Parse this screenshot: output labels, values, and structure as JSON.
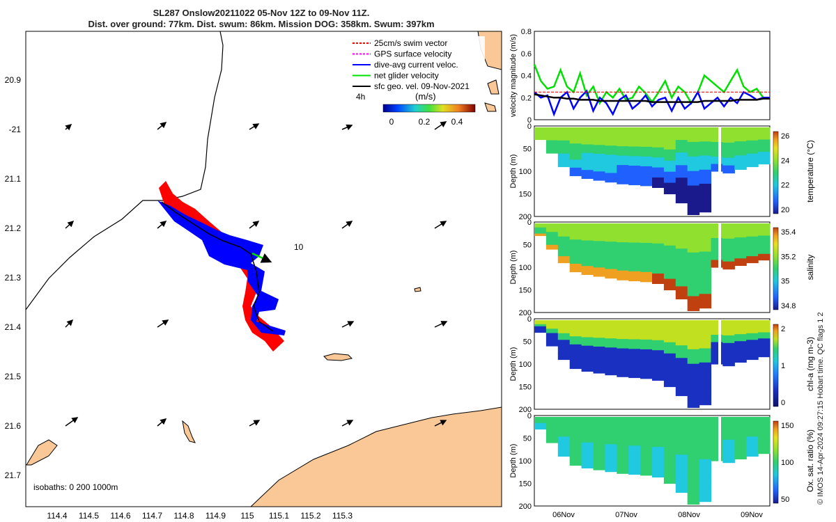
{
  "title": {
    "line1": "SL287 Onslow20211022 05-Nov 12Z to 09-Nov 11Z.",
    "line2": "Dist. over ground: 77km. Dist. swum: 86km. Mission DOG: 358km. Swum: 397km"
  },
  "map": {
    "legend": [
      {
        "label": "25cm/s swim vector",
        "color": "#ff0000"
      },
      {
        "label": "GPS surface velocity",
        "color": "#ff00ff"
      },
      {
        "label": "dive-avg current veloc.",
        "color": "#0000ff"
      },
      {
        "label": "net glider velocity",
        "color": "#00e000"
      },
      {
        "label": "sfc geo. vel. 09-Nov-2021",
        "color": "#000000"
      }
    ],
    "colorbar_time_label": "4h",
    "colorbar_unit": "(m/s)",
    "colorbar_ticks": [
      "0",
      "0.2",
      "0.4"
    ],
    "isobath_note": "isobaths: 0   200   1000m",
    "contour_label": "10",
    "lon_ticks": [
      "114.4",
      "114.5",
      "114.6",
      "114.7",
      "114.8",
      "114.9",
      "115",
      "115.1",
      "115.2",
      "115.3"
    ],
    "lat_ticks": [
      "20.9",
      "-21",
      "21.1",
      "21.2",
      "21.3",
      "21.4",
      "21.5",
      "21.6",
      "21.7"
    ],
    "land_color": "#fac896"
  },
  "chart_data": [
    {
      "type": "line",
      "ylabel": "velocity magnitude (m/s)",
      "ylim": [
        0,
        0.8
      ],
      "yticks": [
        "0",
        "0.2",
        "0.4",
        "0.6",
        "0.8"
      ],
      "x_range": [
        "05-Nov 12Z",
        "09-Nov 11Z"
      ],
      "series": [
        {
          "color": "#00e000",
          "values": [
            0.5,
            0.35,
            0.28,
            0.3,
            0.45,
            0.3,
            0.25,
            0.42,
            0.22,
            0.3,
            0.15,
            0.25,
            0.2,
            0.28,
            0.18,
            0.2,
            0.3,
            0.24,
            0.16,
            0.25,
            0.35,
            0.2,
            0.3,
            0.25,
            0.15,
            0.25,
            0.4,
            0.35,
            0.3,
            0.25,
            0.35,
            0.45,
            0.3,
            0.25,
            0.28,
            0.2,
            0.2
          ]
        },
        {
          "color": "#0000ff",
          "values": [
            0.25,
            0.2,
            0.22,
            0.05,
            0.2,
            0.25,
            0.1,
            0.2,
            0.26,
            0.08,
            0.2,
            0.15,
            0.05,
            0.18,
            0.22,
            0.1,
            0.15,
            0.22,
            0.12,
            0.18,
            0.2,
            0.08,
            0.2,
            0.1,
            0.15,
            0.25,
            0.1,
            0.15,
            0.2,
            0.12,
            0.2,
            0.15,
            0.25,
            0.22,
            0.18,
            0.2,
            0.2
          ]
        },
        {
          "color": "#ff0000",
          "values": [
            0.25,
            0.25,
            0.25,
            0.25,
            0.25,
            0.25,
            0.25,
            0.25,
            0.25,
            0.25,
            0.25,
            0.25,
            0.25,
            0.25,
            0.25,
            0.25,
            0.25,
            0.25,
            0.25,
            0.25,
            0.25,
            0.25,
            0.25,
            0.25,
            0.25,
            0.25,
            0.25,
            0.25,
            0.25,
            0.25,
            0.25,
            0.25,
            0.25,
            0.25,
            0.25,
            0.25,
            0.25
          ]
        },
        {
          "color": "#000000",
          "values": [
            0.23,
            0.22,
            0.21,
            0.2,
            0.2,
            0.19,
            0.19,
            0.18,
            0.18,
            0.18,
            0.17,
            0.17,
            0.17,
            0.17,
            0.17,
            0.17,
            0.17,
            0.17,
            0.16,
            0.16,
            0.16,
            0.16,
            0.16,
            0.16,
            0.16,
            0.16,
            0.17,
            0.17,
            0.17,
            0.17,
            0.17,
            0.18,
            0.18,
            0.18,
            0.18,
            0.19,
            0.19
          ]
        }
      ]
    },
    {
      "type": "heatmap",
      "ylabel": "Depth (m)",
      "yticks": [
        "0",
        "50",
        "100",
        "150",
        "200"
      ],
      "colorbar_label": "temperature (°C)",
      "colorbar_ticks": [
        "20",
        "22",
        "24",
        "26"
      ],
      "colors": [
        "#1a1a8c",
        "#2060ff",
        "#20c8e0",
        "#30d070",
        "#90e030",
        "#e8e020",
        "#f0a020",
        "#c04010"
      ]
    },
    {
      "type": "heatmap",
      "ylabel": "Depth (m)",
      "yticks": [
        "0",
        "50",
        "100",
        "150",
        "200"
      ],
      "colorbar_label": "salinity",
      "colorbar_ticks": [
        "34.8",
        "35",
        "35.2",
        "35.4"
      ],
      "colors": [
        "#1a1a8c",
        "#2060ff",
        "#20c8e0",
        "#30d070",
        "#90e030",
        "#e8e020",
        "#f0a020",
        "#c04010"
      ]
    },
    {
      "type": "heatmap",
      "ylabel": "Depth (m)",
      "yticks": [
        "0",
        "50",
        "100",
        "150",
        "200"
      ],
      "colorbar_label": "chl-a (mg m-3)",
      "colorbar_ticks": [
        "0",
        "1",
        "2"
      ],
      "colors": [
        "#10106e",
        "#1a30c0",
        "#2080ff",
        "#20c8e0",
        "#30d070",
        "#c0e020",
        "#f0a020",
        "#c04010"
      ]
    },
    {
      "type": "heatmap",
      "ylabel": "Depth (m)",
      "yticks": [
        "0",
        "50",
        "100",
        "150",
        "200"
      ],
      "colorbar_label": "Ox. sat. ratio (%)",
      "colorbar_ticks": [
        "50",
        "100",
        "150"
      ],
      "colors": [
        "#1a1a8c",
        "#2060ff",
        "#20c8e0",
        "#30d070",
        "#90e030",
        "#e8e020",
        "#f0a020",
        "#c04010"
      ],
      "xticks": [
        "06Nov",
        "07Nov",
        "08Nov",
        "09Nov"
      ]
    }
  ],
  "credit": "© IMOS 14-Apr-2024 09:27:15 Hobart time. QC flags 1  2"
}
